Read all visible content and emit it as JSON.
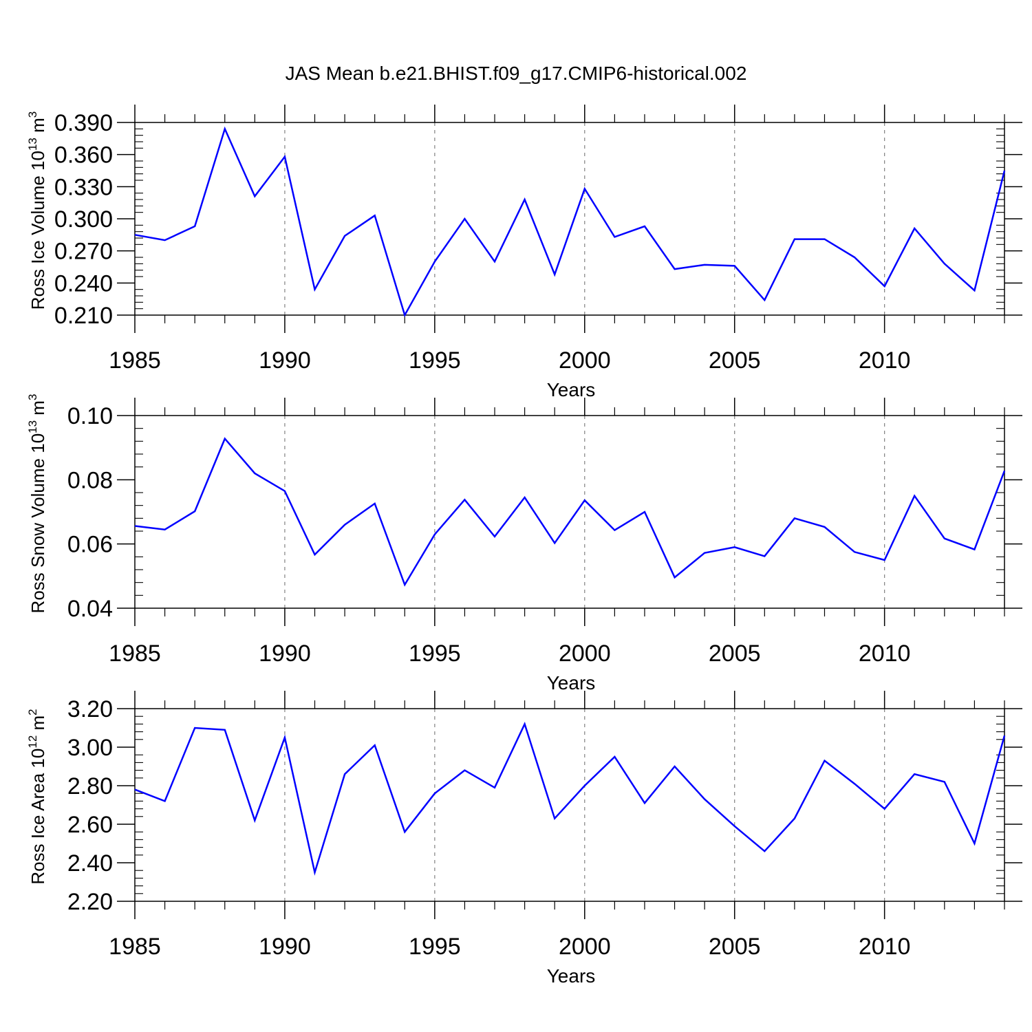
{
  "title": "JAS Mean b.e21.BHIST.f09_g17.CMIP6-historical.002",
  "line_color": "#0000ff",
  "grid_color": "#808080",
  "chart_data": [
    {
      "type": "line",
      "title": "JAS Mean b.e21.BHIST.f09_g17.CMIP6-historical.002",
      "xlabel": "Years",
      "ylabel": {
        "text": "Ross Ice Volume 10",
        "exp": "13",
        "unit": "m",
        "unit_exp": "3"
      },
      "xlim": [
        1985,
        2014
      ],
      "ylim": [
        0.21,
        0.39
      ],
      "x_ticks": [
        "1985",
        "1990",
        "1995",
        "2000",
        "2005",
        "2010"
      ],
      "y_ticks": [
        "0.210",
        "0.240",
        "0.270",
        "0.300",
        "0.330",
        "0.360",
        "0.390"
      ],
      "x": [
        1985,
        1986,
        1987,
        1988,
        1989,
        1990,
        1991,
        1992,
        1993,
        1994,
        1995,
        1996,
        1997,
        1998,
        1999,
        2000,
        2001,
        2002,
        2003,
        2004,
        2005,
        2006,
        2007,
        2008,
        2009,
        2010,
        2011,
        2012,
        2013,
        2014
      ],
      "series": [
        {
          "name": "Ross Ice Volume",
          "values": [
            0.285,
            0.28,
            0.293,
            0.384,
            0.321,
            0.358,
            0.234,
            0.284,
            0.303,
            0.21,
            0.26,
            0.3,
            0.26,
            0.318,
            0.248,
            0.328,
            0.283,
            0.293,
            0.253,
            0.257,
            0.256,
            0.224,
            0.281,
            0.281,
            0.264,
            0.237,
            0.291,
            0.258,
            0.233,
            0.345
          ]
        }
      ]
    },
    {
      "type": "line",
      "xlabel": "Years",
      "ylabel": {
        "text": "Ross Snow Volume 10",
        "exp": "13",
        "unit": "m",
        "unit_exp": "3"
      },
      "xlim": [
        1985,
        2014
      ],
      "ylim": [
        0.04,
        0.1
      ],
      "x_ticks": [
        "1985",
        "1990",
        "1995",
        "2000",
        "2005",
        "2010"
      ],
      "y_ticks": [
        "0.04",
        "0.06",
        "0.08",
        "0.10"
      ],
      "x": [
        1985,
        1986,
        1987,
        1988,
        1989,
        1990,
        1991,
        1992,
        1993,
        1994,
        1995,
        1996,
        1997,
        1998,
        1999,
        2000,
        2001,
        2002,
        2003,
        2004,
        2005,
        2006,
        2007,
        2008,
        2009,
        2010,
        2011,
        2012,
        2013,
        2014
      ],
      "series": [
        {
          "name": "Ross Snow Volume",
          "values": [
            0.0656,
            0.0645,
            0.0702,
            0.0928,
            0.082,
            0.0765,
            0.0567,
            0.066,
            0.0726,
            0.0473,
            0.063,
            0.0738,
            0.0623,
            0.0745,
            0.0603,
            0.0736,
            0.0643,
            0.07,
            0.0496,
            0.0572,
            0.059,
            0.0562,
            0.068,
            0.0653,
            0.0575,
            0.055,
            0.075,
            0.0617,
            0.0583,
            0.0828
          ]
        }
      ]
    },
    {
      "type": "line",
      "xlabel": "Years",
      "ylabel": {
        "text": "Ross Ice Area 10",
        "exp": "12",
        "unit": "m",
        "unit_exp": "2"
      },
      "xlim": [
        1985,
        2014
      ],
      "ylim": [
        2.2,
        3.2
      ],
      "x_ticks": [
        "1985",
        "1990",
        "1995",
        "2000",
        "2005",
        "2010"
      ],
      "y_ticks": [
        "2.20",
        "2.40",
        "2.60",
        "2.80",
        "3.00",
        "3.20"
      ],
      "x": [
        1985,
        1986,
        1987,
        1988,
        1989,
        1990,
        1991,
        1992,
        1993,
        1994,
        1995,
        1996,
        1997,
        1998,
        1999,
        2000,
        2001,
        2002,
        2003,
        2004,
        2005,
        2006,
        2007,
        2008,
        2009,
        2010,
        2011,
        2012,
        2013,
        2014
      ],
      "series": [
        {
          "name": "Ross Ice Area",
          "values": [
            2.78,
            2.72,
            3.1,
            3.09,
            2.62,
            3.05,
            2.35,
            2.86,
            3.01,
            2.56,
            2.76,
            2.88,
            2.79,
            3.12,
            2.63,
            2.8,
            2.95,
            2.71,
            2.9,
            2.73,
            2.59,
            2.46,
            2.63,
            2.93,
            2.81,
            2.68,
            2.86,
            2.82,
            2.5,
            3.06
          ]
        }
      ]
    }
  ]
}
